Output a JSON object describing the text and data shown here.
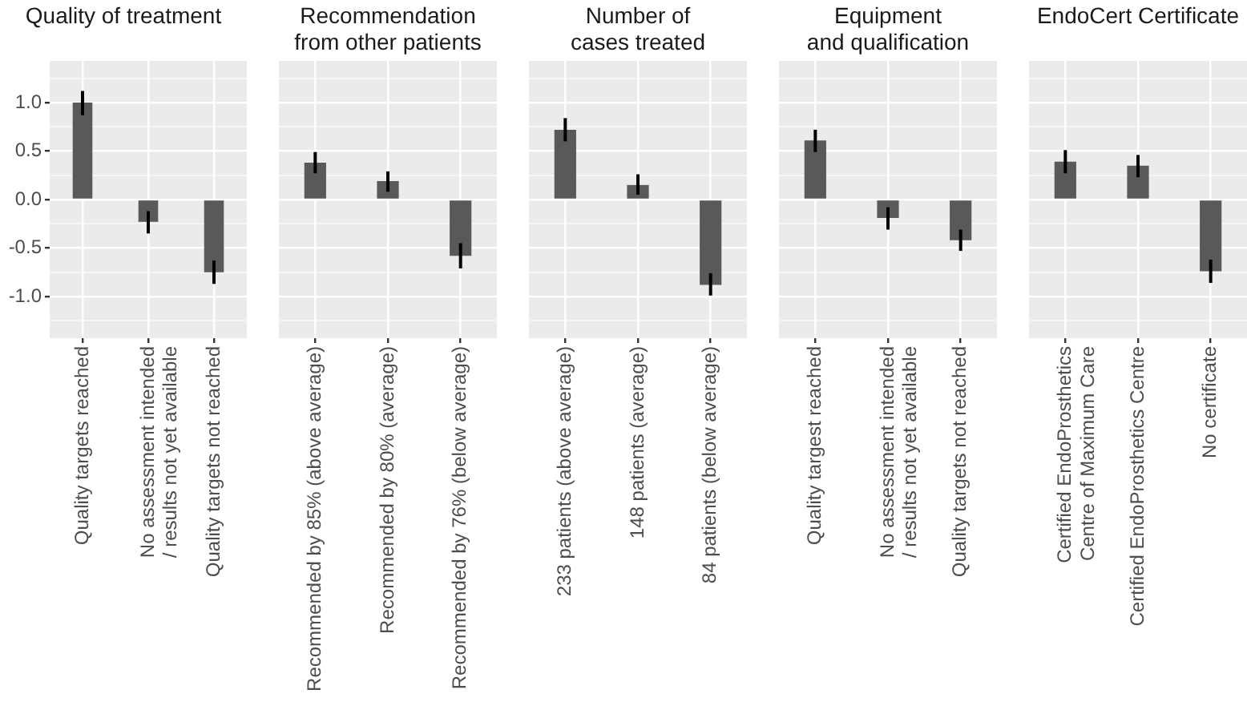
{
  "chart_data": [
    {
      "type": "bar",
      "title": "Quality of treatment",
      "categories": [
        "Quality targets reached",
        "No assessment intended\n/ results not yet available",
        "Quality targets not reached"
      ],
      "values": [
        1.0,
        -0.23,
        -0.75
      ],
      "errors": [
        [
          0.87,
          1.12
        ],
        [
          -0.35,
          -0.12
        ],
        [
          -0.87,
          -0.63
        ]
      ],
      "color": "#595959",
      "ylim": [
        -1.43,
        1.43
      ],
      "yticks": [
        {
          "value": -1.25,
          "label": null
        },
        {
          "value": -1,
          "label": "-1.0"
        },
        {
          "value": -0.75,
          "label": null
        },
        {
          "value": -0.5,
          "label": "-0.5"
        },
        {
          "value": -0.25,
          "label": null
        },
        {
          "value": 0,
          "label": "0.0"
        },
        {
          "value": 0.25,
          "label": null
        },
        {
          "value": 0.5,
          "label": "0.5"
        },
        {
          "value": 0.75,
          "label": null
        },
        {
          "value": 1,
          "label": "1.0"
        },
        {
          "value": 1.25,
          "label": null
        }
      ],
      "grid": true
    },
    {
      "type": "bar",
      "title": "Recommendation\nfrom other patients",
      "categories": [
        "Recommended by 85% (above average)",
        "Recommended by 80% (average)",
        "Recommended by 76% (below average)"
      ],
      "values": [
        0.38,
        0.19,
        -0.58
      ],
      "errors": [
        [
          0.27,
          0.49
        ],
        [
          0.08,
          0.29
        ],
        [
          -0.71,
          -0.45
        ]
      ],
      "color": "#595959",
      "ylim": [
        -1.43,
        1.43
      ],
      "yticks": [
        {
          "value": -1.25,
          "label": null
        },
        -1,
        {
          "value": -0.75,
          "label": null
        },
        -0.5,
        {
          "value": -0.25,
          "label": null
        },
        0,
        {
          "value": 0.25,
          "label": null
        },
        0.5,
        {
          "value": 0.75,
          "label": null
        },
        1,
        {
          "value": 1.25,
          "label": null
        }
      ],
      "grid": true,
      "tick_labels": "x"
    },
    {
      "type": "bar",
      "title": "Number of\ncases treated",
      "categories": [
        "233 patients (above average)",
        "148 patients (average)",
        "84 patients (below average)"
      ],
      "values": [
        0.72,
        0.15,
        -0.88
      ],
      "errors": [
        [
          0.6,
          0.84
        ],
        [
          0.05,
          0.26
        ],
        [
          -0.99,
          -0.76
        ]
      ],
      "color": "#595959",
      "ylim": [
        -1.43,
        1.43
      ],
      "yticks": [
        {
          "value": -1.25,
          "label": null
        },
        -1,
        {
          "value": -0.75,
          "label": null
        },
        -0.5,
        {
          "value": -0.25,
          "label": null
        },
        0,
        {
          "value": 0.25,
          "label": null
        },
        0.5,
        {
          "value": 0.75,
          "label": null
        },
        1,
        {
          "value": 1.25,
          "label": null
        }
      ],
      "grid": true,
      "tick_labels": "x"
    },
    {
      "type": "bar",
      "title": "Equipment\nand qualification",
      "categories": [
        "Quality targest reached",
        "No assessment intended\n/ results not yet available",
        "Quality targets not reached"
      ],
      "values": [
        0.61,
        -0.19,
        -0.42
      ],
      "errors": [
        [
          0.49,
          0.72
        ],
        [
          -0.31,
          -0.08
        ],
        [
          -0.53,
          -0.31
        ]
      ],
      "color": "#595959",
      "ylim": [
        -1.43,
        1.43
      ],
      "yticks": [
        {
          "value": -1.25,
          "label": null
        },
        -1,
        {
          "value": -0.75,
          "label": null
        },
        -0.5,
        {
          "value": -0.25,
          "label": null
        },
        0,
        {
          "value": 0.25,
          "label": null
        },
        0.5,
        {
          "value": 0.75,
          "label": null
        },
        1,
        {
          "value": 1.25,
          "label": null
        }
      ],
      "grid": true,
      "tick_labels": "x"
    },
    {
      "type": "bar",
      "title": "EndoCert Certificate",
      "categories": [
        "Certified EndoProsthetics\nCentre of Maximum Care",
        "Certified EndoProsthetics Centre",
        "No certificate"
      ],
      "values": [
        0.39,
        0.35,
        -0.74
      ],
      "errors": [
        [
          0.27,
          0.51
        ],
        [
          0.23,
          0.46
        ],
        [
          -0.86,
          -0.62
        ]
      ],
      "color": "#595959",
      "ylim": [
        -1.43,
        1.43
      ],
      "yticks": [
        {
          "value": -1.25,
          "label": null
        },
        -1,
        {
          "value": -0.75,
          "label": null
        },
        -0.5,
        {
          "value": -0.25,
          "label": null
        },
        0,
        {
          "value": 0.25,
          "label": null
        },
        0.5,
        {
          "value": 0.75,
          "label": null
        },
        1,
        {
          "value": 1.25,
          "label": null
        }
      ],
      "grid": true,
      "tick_labels": "x"
    }
  ]
}
